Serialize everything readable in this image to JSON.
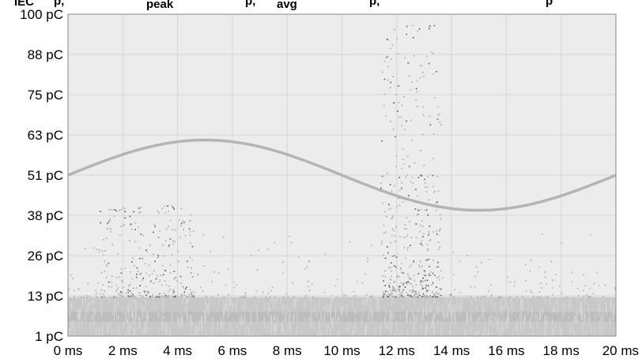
{
  "chart_data": {
    "type": "scatter",
    "title": "",
    "xlabel": "",
    "ylabel": "",
    "xlim": [
      0,
      20
    ],
    "ylim": [
      1,
      100
    ],
    "x_ticks": [
      "0 ms",
      "2 ms",
      "4 ms",
      "6 ms",
      "8 ms",
      "10 ms",
      "12 ms",
      "14 ms",
      "16 ms",
      "18 ms",
      "20 ms"
    ],
    "y_ticks": [
      "1 pC",
      "13 pC",
      "26 pC",
      "38 pC",
      "51 pC",
      "63 pC",
      "75 pC",
      "88 pC",
      "100 pC"
    ],
    "grid": true,
    "colors": {
      "background": "#ececec",
      "grid": "#d6d6d6",
      "sine": "#b4b4b4",
      "points": "#a8a8a8",
      "dark_points": "#555555"
    },
    "sine_reference": {
      "period_ms": 20,
      "center_pC": 50.5,
      "amplitude_pC": 10.8
    },
    "noise_floor": {
      "from_pC": 1,
      "to_pC": 13
    },
    "clusters": [
      {
        "x_range_ms": [
          1.0,
          4.6
        ],
        "y_range_pC": [
          13,
          42
        ],
        "density": "medium"
      },
      {
        "x_range_ms": [
          11.4,
          13.6
        ],
        "y_range_pC": [
          13,
          97
        ],
        "density": "high"
      }
    ]
  }
}
